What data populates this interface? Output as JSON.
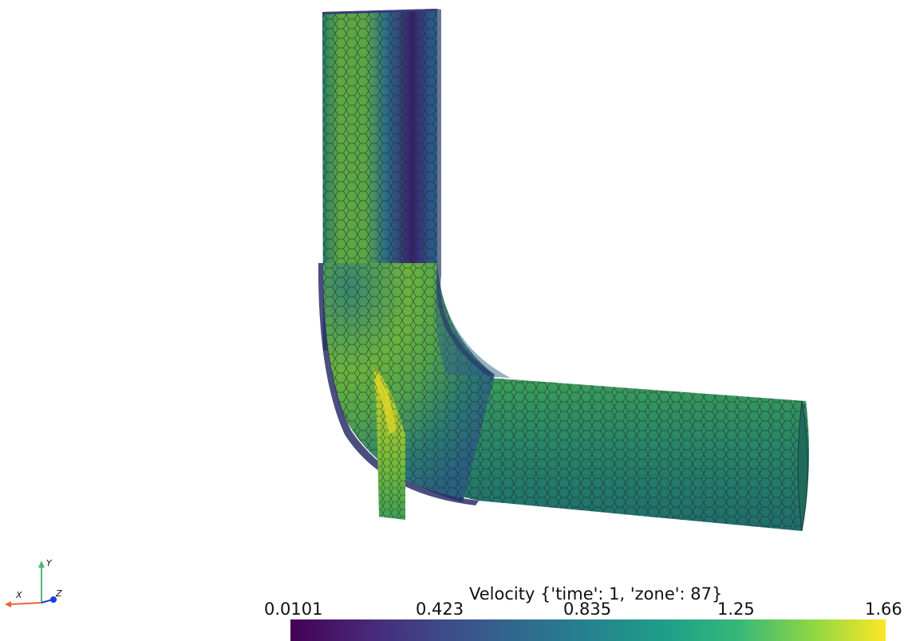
{
  "scene": {
    "background": "#ffffff",
    "mesh_edge_color": "#1a2a2a",
    "colormap": "viridis",
    "colors": {
      "low": "#440154",
      "mid_low": "#31688e",
      "mid": "#21918c",
      "mid_high": "#35b779",
      "high": "#fde725",
      "pipe_green": "#277f63",
      "pipe_lime": "#6bbf3a"
    }
  },
  "axes": {
    "x_label": "X",
    "y_label": "Y",
    "z_label": "Z",
    "x_color": "#e8643c",
    "y_color": "#52b873",
    "z_color": "#1c3de0"
  },
  "colorbar": {
    "title": "Velocity {'time': 1, 'zone': 87}",
    "ticks": [
      "0.0101",
      "0.423",
      "0.835",
      "1.25",
      "1.66"
    ],
    "min": 0.0101,
    "max": 1.66
  }
}
